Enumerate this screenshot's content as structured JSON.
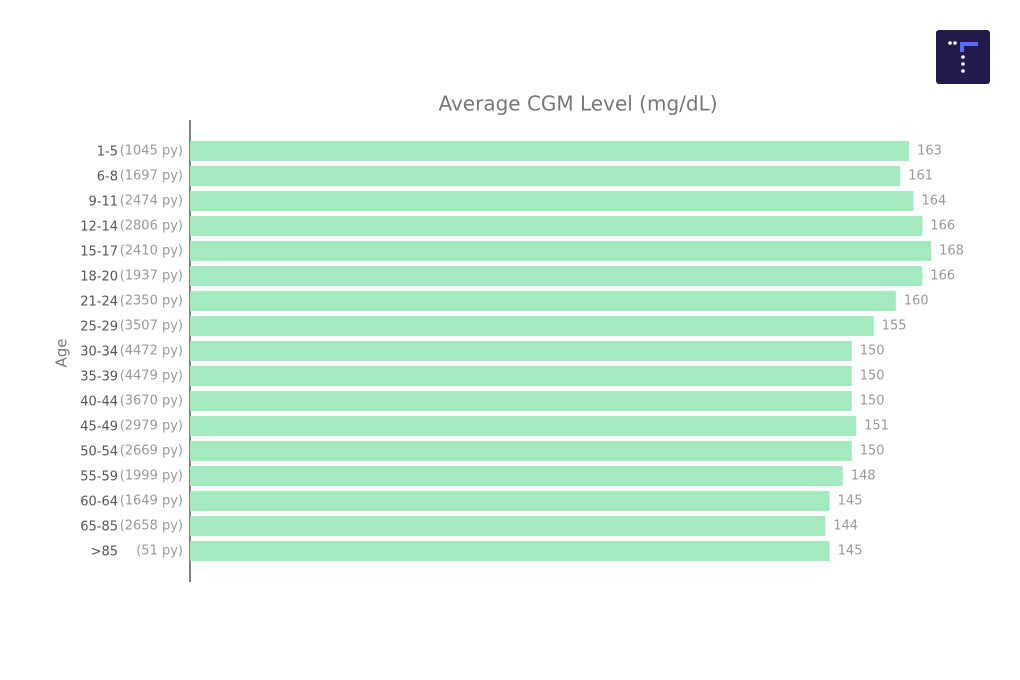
{
  "chart_data": {
    "type": "barh",
    "title": "Average CGM Level (mg/dL)",
    "y_label": "Age",
    "categories": [
      "1-5",
      "6-8",
      "9-11",
      "12-14",
      "15-17",
      "18-20",
      "21-24",
      "25-29",
      "30-34",
      "35-39",
      "40-44",
      "45-49",
      "50-54",
      "55-59",
      "60-64",
      "65-85",
      ">85"
    ],
    "category_notes": [
      "(1045 py)",
      "(1697 py)",
      "(2474 py)",
      "(2806 py)",
      "(2410 py)",
      "(1937 py)",
      "(2350 py)",
      "(3507 py)",
      "(4472 py)",
      "(4479 py)",
      "(3670 py)",
      "(2979 py)",
      "(2669 py)",
      "(1999 py)",
      "(1649 py)",
      "(2658 py)",
      "(51 py)"
    ],
    "values": [
      163,
      161,
      164,
      166,
      168,
      166,
      160,
      155,
      150,
      150,
      150,
      151,
      150,
      148,
      145,
      144,
      145
    ],
    "color": "#a3ebbf",
    "xlim": [
      0,
      175
    ]
  }
}
